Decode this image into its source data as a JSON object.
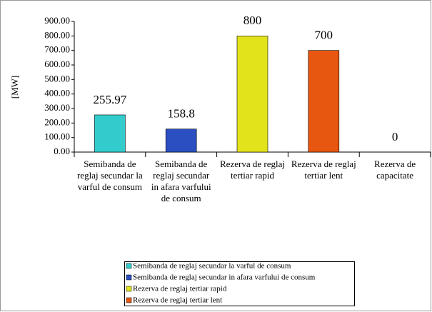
{
  "chart_data": {
    "type": "bar",
    "y_label": "[MW]",
    "categories": [
      "Semibanda de reglaj secundar la varful de consum",
      "Semibanda de reglaj secundar in afara varfului de consum",
      "Rezerva de reglaj tertiar rapid",
      "Rezerva de reglaj tertiar lent",
      "Rezerva de capacitate"
    ],
    "values": [
      255.97,
      158.8,
      800,
      700,
      0
    ],
    "series": [
      {
        "name": "Semibanda de reglaj secundar la varful de consum",
        "color": "#33cccc"
      },
      {
        "name": "Semibanda de reglaj secundar in afara varfului de consum",
        "color": "#2b4fc0"
      },
      {
        "name": "Rezerva de reglaj tertiar rapid",
        "color": "#e3e31c"
      },
      {
        "name": "Rezerva de reglaj tertiar lent",
        "color": "#e8570f"
      }
    ],
    "ylim": [
      0,
      900
    ],
    "yticks": [
      {
        "value": 0,
        "label": "0.00"
      },
      {
        "value": 100,
        "label": "100.00"
      },
      {
        "value": 200,
        "label": "200.00"
      },
      {
        "value": 300,
        "label": "300.00"
      },
      {
        "value": 400,
        "label": "400.00"
      },
      {
        "value": 500,
        "label": "500.00"
      },
      {
        "value": 600,
        "label": "600.00"
      },
      {
        "value": 700,
        "label": "700.00"
      },
      {
        "value": 800,
        "label": "800.00"
      },
      {
        "value": 900,
        "label": "900.00"
      }
    ],
    "grid": false
  }
}
